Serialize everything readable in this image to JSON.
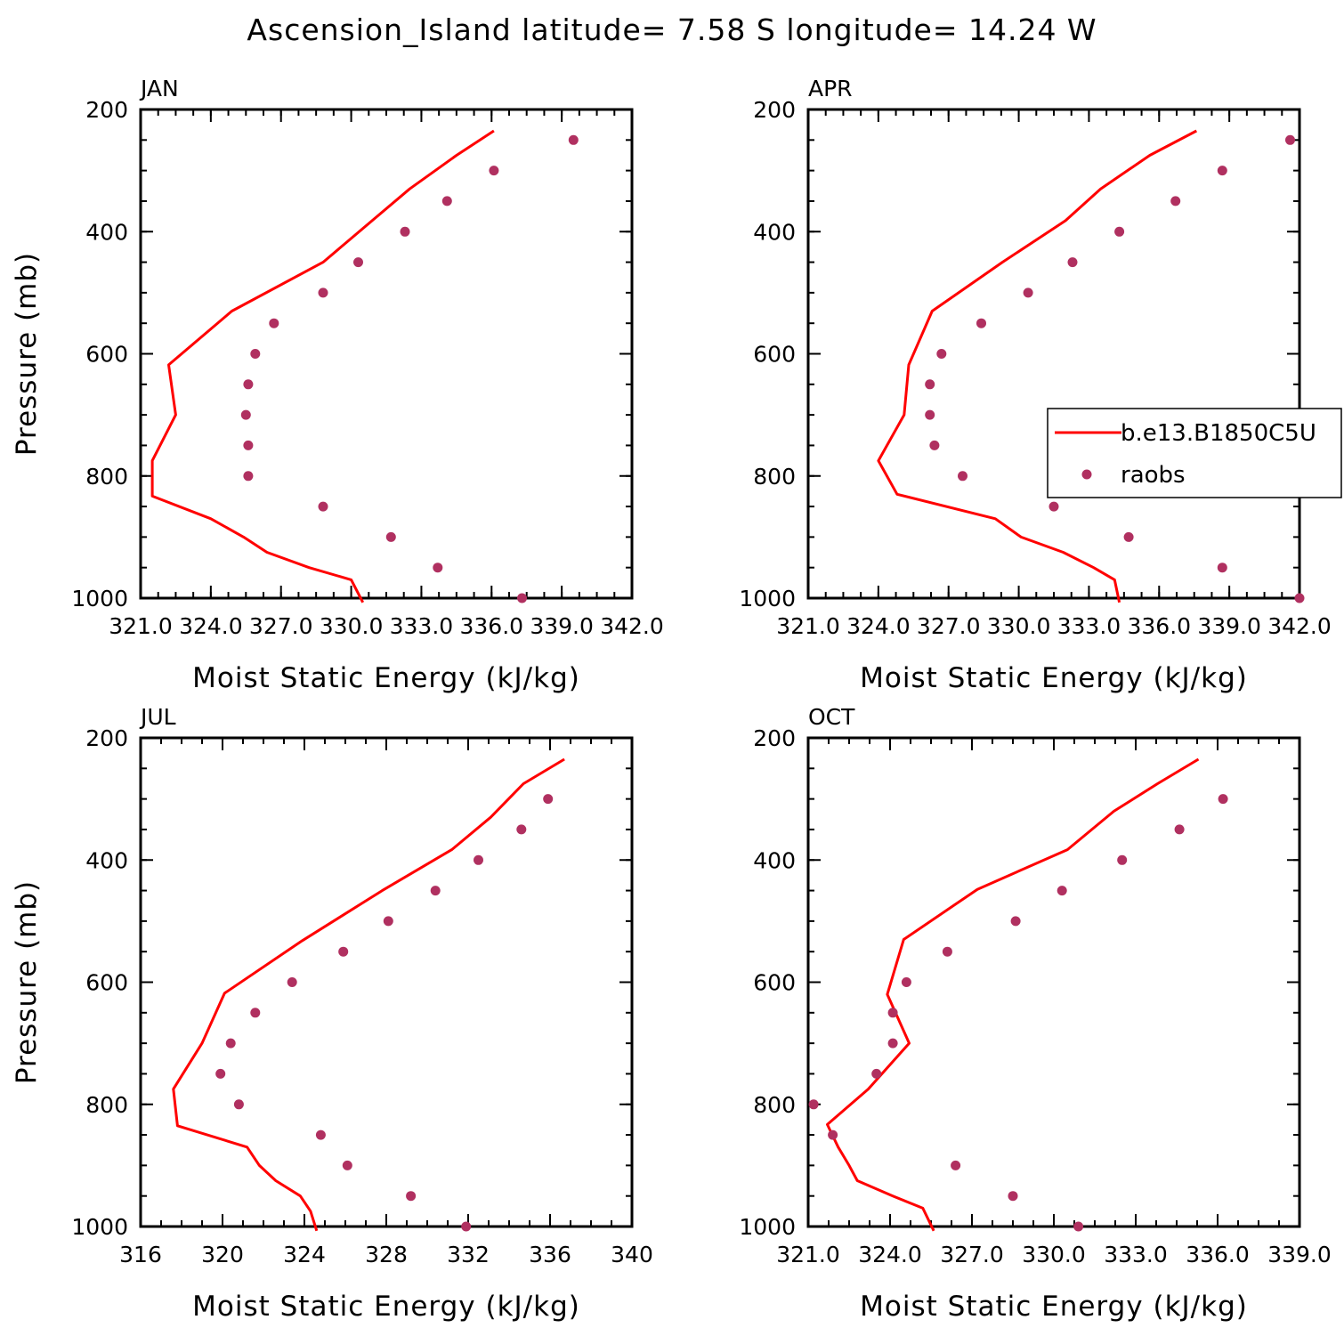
{
  "title": "Ascension_Island  latitude= 7.58 S longitude= 14.24 W",
  "legend": {
    "model_label": "b.e13.B1850C5U",
    "obs_label": "raobs",
    "placement": "right, within APR panel"
  },
  "colors": {
    "model_line": "#ff0000",
    "obs_marker": "#b03060",
    "axes": "#000000"
  },
  "chart_data": [
    {
      "type": "line",
      "panel": "JAN",
      "label": "JAN",
      "xlabel": "Moist Static Energy (kJ/kg)",
      "ylabel": "Pressure (mb)",
      "xlim": [
        321.0,
        342.0
      ],
      "ylim": [
        1000,
        200
      ],
      "y_reversed": true,
      "x_ticks": [
        321.0,
        324.0,
        327.0,
        330.0,
        333.0,
        336.0,
        339.0,
        342.0
      ],
      "x_tick_labels": [
        "321.0",
        "324.0",
        "327.0",
        "330.0",
        "333.0",
        "336.0",
        "339.0",
        "342.0"
      ],
      "y_ticks": [
        200,
        400,
        600,
        800,
        1000
      ],
      "y_tick_labels": [
        "200",
        "400",
        "600",
        "800",
        "1000"
      ],
      "series": [
        {
          "name": "b.e13.B1850C5U",
          "kind": "line",
          "x": [
            336.1,
            334.5,
            332.5,
            330.8,
            328.8,
            324.9,
            322.2,
            322.5,
            321.5,
            321.5,
            324.0,
            325.4,
            326.4,
            328.2,
            330.0,
            330.5
          ],
          "y": [
            235,
            275,
            330,
            385,
            450,
            530,
            618,
            700,
            775,
            833,
            870,
            900,
            925,
            950,
            970,
            1007
          ]
        },
        {
          "name": "raobs",
          "kind": "scatter",
          "x": [
            339.5,
            336.1,
            334.1,
            332.3,
            330.3,
            328.8,
            326.7,
            325.9,
            325.6,
            325.5,
            325.6,
            325.6,
            328.8,
            331.7,
            333.7,
            337.3
          ],
          "y": [
            250,
            300,
            350,
            400,
            450,
            500,
            550,
            600,
            650,
            700,
            750,
            800,
            850,
            900,
            950,
            1000
          ]
        }
      ]
    },
    {
      "type": "line",
      "panel": "APR",
      "label": "APR",
      "xlabel": "Moist Static Energy (kJ/kg)",
      "ylabel": "",
      "xlim": [
        321.0,
        342.0
      ],
      "ylim": [
        1000,
        200
      ],
      "y_reversed": true,
      "x_ticks": [
        321.0,
        324.0,
        327.0,
        330.0,
        333.0,
        336.0,
        339.0,
        342.0
      ],
      "x_tick_labels": [
        "321.0",
        "324.0",
        "327.0",
        "330.0",
        "333.0",
        "336.0",
        "339.0",
        "342.0"
      ],
      "y_ticks": [
        200,
        400,
        600,
        800,
        1000
      ],
      "y_tick_labels": [
        "200",
        "400",
        "600",
        "800",
        "1000"
      ],
      "series": [
        {
          "name": "b.e13.B1850C5U",
          "kind": "line",
          "x": [
            337.6,
            335.6,
            333.5,
            332.0,
            329.3,
            326.3,
            325.3,
            325.1,
            324.0,
            324.8,
            329.0,
            330.1,
            331.9,
            333.2,
            334.1,
            334.3
          ],
          "y": [
            235,
            275,
            330,
            382,
            450,
            530,
            618,
            700,
            775,
            830,
            870,
            900,
            925,
            950,
            970,
            1007
          ]
        },
        {
          "name": "raobs",
          "kind": "scatter",
          "x": [
            341.6,
            338.7,
            336.7,
            334.3,
            332.3,
            330.4,
            328.4,
            326.7,
            326.2,
            326.2,
            326.4,
            327.6,
            331.5,
            334.7,
            338.7,
            342.0
          ],
          "y": [
            250,
            300,
            350,
            400,
            450,
            500,
            550,
            600,
            650,
            700,
            750,
            800,
            850,
            900,
            950,
            1000
          ]
        }
      ]
    },
    {
      "type": "line",
      "panel": "JUL",
      "label": "JUL",
      "xlabel": "Moist Static Energy (kJ/kg)",
      "ylabel": "Pressure (mb)",
      "xlim": [
        316,
        340
      ],
      "ylim": [
        1000,
        200
      ],
      "y_reversed": true,
      "x_ticks": [
        316,
        320,
        324,
        328,
        332,
        336,
        340
      ],
      "x_tick_labels": [
        "316",
        "320",
        "324",
        "328",
        "332",
        "336",
        "340"
      ],
      "y_ticks": [
        200,
        400,
        600,
        800,
        1000
      ],
      "y_tick_labels": [
        "200",
        "400",
        "600",
        "800",
        "1000"
      ],
      "series": [
        {
          "name": "b.e13.B1850C5U",
          "kind": "line",
          "x": [
            336.7,
            334.7,
            333.1,
            331.2,
            327.8,
            323.9,
            320.1,
            319.0,
            317.6,
            317.8,
            321.2,
            321.8,
            322.6,
            323.8,
            324.3,
            324.6
          ],
          "y": [
            235,
            275,
            330,
            383,
            450,
            532,
            618,
            700,
            775,
            835,
            870,
            900,
            925,
            950,
            975,
            1007
          ]
        },
        {
          "name": "raobs",
          "kind": "scatter",
          "x": [
            335.9,
            334.6,
            332.5,
            330.4,
            328.1,
            325.9,
            323.4,
            321.6,
            320.4,
            319.9,
            320.8,
            324.8,
            326.1,
            329.2,
            331.9
          ],
          "y": [
            300,
            350,
            400,
            450,
            500,
            550,
            600,
            650,
            700,
            750,
            800,
            850,
            900,
            950,
            1000
          ]
        }
      ]
    },
    {
      "type": "line",
      "panel": "OCT",
      "label": "OCT",
      "xlabel": "Moist Static Energy (kJ/kg)",
      "ylabel": "",
      "xlim": [
        321.0,
        339.0
      ],
      "ylim": [
        1000,
        200
      ],
      "y_reversed": true,
      "x_ticks": [
        321.0,
        324.0,
        327.0,
        330.0,
        333.0,
        336.0,
        339.0
      ],
      "x_tick_labels": [
        "321.0",
        "324.0",
        "327.0",
        "330.0",
        "333.0",
        "336.0",
        "339.0"
      ],
      "y_ticks": [
        200,
        400,
        600,
        800,
        1000
      ],
      "y_tick_labels": [
        "200",
        "400",
        "600",
        "800",
        "1000"
      ],
      "series": [
        {
          "name": "b.e13.B1850C5U",
          "kind": "line",
          "x": [
            335.3,
            333.8,
            332.2,
            330.5,
            327.2,
            324.5,
            323.9,
            324.7,
            323.2,
            321.7,
            322.1,
            322.5,
            322.8,
            324.1,
            325.2,
            325.6
          ],
          "y": [
            235,
            275,
            320,
            383,
            448,
            530,
            620,
            700,
            775,
            833,
            870,
            900,
            925,
            950,
            970,
            1007
          ]
        },
        {
          "name": "raobs",
          "kind": "scatter",
          "x": [
            336.2,
            334.6,
            332.5,
            330.3,
            328.6,
            326.1,
            324.6,
            324.1,
            324.1,
            323.5,
            321.2,
            321.9,
            326.4,
            328.5,
            330.9
          ],
          "y": [
            300,
            350,
            400,
            450,
            500,
            550,
            600,
            650,
            700,
            750,
            800,
            850,
            900,
            950,
            1000
          ]
        }
      ]
    }
  ]
}
